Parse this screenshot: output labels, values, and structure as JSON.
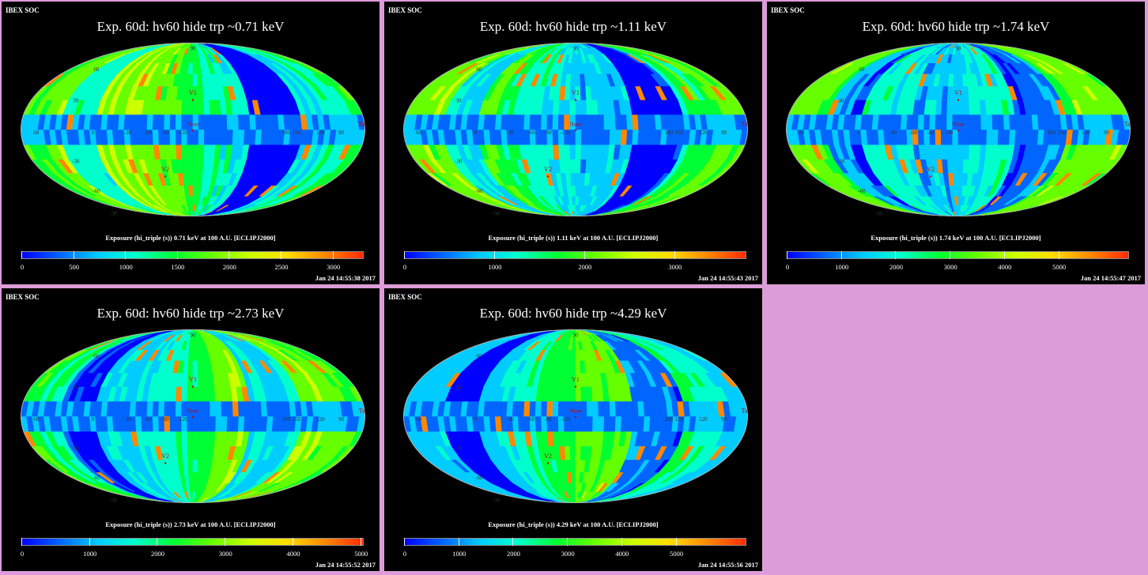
{
  "app": "IBEX SOC",
  "colormap": [
    "#0000ff",
    "#0066ff",
    "#00ccff",
    "#00ffcc",
    "#00ff33",
    "#66ff00",
    "#ccff00",
    "#ffdd00",
    "#ff8800",
    "#ff2a00"
  ],
  "map_labels": {
    "longitudes": [
      "60",
      "0",
      "-30",
      "-60",
      "-90",
      "-120",
      "180",
      "150",
      "120",
      "90"
    ],
    "latitudes": [
      "60",
      "30",
      "-30",
      "-60",
      "-90",
      "90"
    ],
    "markers": [
      "V1",
      "V2",
      "Nose",
      "Tail"
    ]
  },
  "panels": [
    {
      "label": "IBEX SOC",
      "title": "Exp.   60d: hv60 hide trp ~0.71 keV",
      "colorbar_label": "Exposure (hi_triple (s))  0.71 keV at 100 A.U. [ECLIPJ2000]",
      "timestamp": "Jan 24 14:55:38 2017",
      "chart_data": {
        "type": "heatmap",
        "projection": "mollweide",
        "energy_keV": 0.71,
        "colorbar_min": 0,
        "colorbar_max": 3300,
        "colorbar_ticks": [
          "0",
          "500",
          "1000",
          "1500",
          "2000",
          "2500",
          "3000"
        ],
        "colorbar_tick_values": [
          0,
          500,
          1000,
          1500,
          2000,
          2500,
          3000
        ]
      }
    },
    {
      "label": "IBEX SOC",
      "title": "Exp.   60d: hv60 hide trp ~1.11 keV",
      "colorbar_label": "Exposure (hi_triple (s))  1.11 keV at 100 A.U. [ECLIPJ2000]",
      "timestamp": "Jan 24 14:55:43 2017",
      "chart_data": {
        "type": "heatmap",
        "projection": "mollweide",
        "energy_keV": 1.11,
        "colorbar_min": 0,
        "colorbar_max": 3800,
        "colorbar_ticks": [
          "0",
          "1000",
          "2000",
          "3000"
        ],
        "colorbar_tick_values": [
          0,
          1000,
          2000,
          3000
        ]
      }
    },
    {
      "label": "IBEX SOC",
      "title": "Exp.   60d: hv60 hide trp ~1.74 keV",
      "colorbar_label": "Exposure (hi_triple (s))  1.74 keV at 100 A.U. [ECLIPJ2000]",
      "timestamp": "Jan 24 14:55:47 2017",
      "chart_data": {
        "type": "heatmap",
        "projection": "mollweide",
        "energy_keV": 1.74,
        "colorbar_min": 0,
        "colorbar_max": 6300,
        "colorbar_ticks": [
          "0",
          "1000",
          "2000",
          "3000",
          "4000",
          "5000"
        ],
        "colorbar_tick_values": [
          0,
          1000,
          2000,
          3000,
          4000,
          5000
        ]
      }
    },
    {
      "label": "IBEX SOC",
      "title": "Exp.   60d: hv60 hide trp ~2.73 keV",
      "colorbar_label": "Exposure (hi_triple (s))  2.73 keV at 100 A.U. [ECLIPJ2000]",
      "timestamp": "Jan 24 14:55:52 2017",
      "chart_data": {
        "type": "heatmap",
        "projection": "mollweide",
        "energy_keV": 2.73,
        "colorbar_min": 0,
        "colorbar_max": 5050,
        "colorbar_ticks": [
          "0",
          "1000",
          "2000",
          "3000",
          "4000",
          "5000"
        ],
        "colorbar_tick_values": [
          0,
          1000,
          2000,
          3000,
          4000,
          5000
        ]
      }
    },
    {
      "label": "IBEX SOC",
      "title": "Exp.   60d: hv60 hide trp ~4.29 keV",
      "colorbar_label": "Exposure (hi_triple (s))  4.29 keV at 100 A.U. [ECLIPJ2000]",
      "timestamp": "Jan 24 14:55:56 2017",
      "chart_data": {
        "type": "heatmap",
        "projection": "mollweide",
        "energy_keV": 4.29,
        "colorbar_min": 0,
        "colorbar_max": 6300,
        "colorbar_ticks": [
          "0",
          "1000",
          "2000",
          "3000",
          "4000",
          "5000"
        ],
        "colorbar_tick_values": [
          0,
          1000,
          2000,
          3000,
          4000,
          5000
        ]
      }
    }
  ]
}
